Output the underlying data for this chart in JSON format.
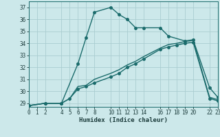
{
  "xlabel": "Humidex (Indice chaleur)",
  "ylabel": "",
  "bg_color": "#cce8ea",
  "grid_color": "#aacdd0",
  "line_color": "#1a6b6b",
  "tick_color": "#1a3a3a",
  "xlim": [
    0,
    23
  ],
  "ylim": [
    28.7,
    37.5
  ],
  "xticks": [
    0,
    1,
    2,
    4,
    5,
    6,
    7,
    8,
    10,
    11,
    12,
    13,
    14,
    16,
    17,
    18,
    19,
    20,
    22,
    23
  ],
  "yticks": [
    29,
    30,
    31,
    32,
    33,
    34,
    35,
    36,
    37
  ],
  "series1_x": [
    0,
    2,
    4,
    6,
    7,
    8,
    10,
    11,
    12,
    13,
    14,
    16,
    17,
    19,
    20,
    22,
    23
  ],
  "series1_y": [
    28.8,
    29.0,
    29.0,
    32.3,
    34.5,
    36.6,
    37.0,
    36.4,
    36.0,
    35.3,
    35.3,
    35.3,
    34.6,
    34.2,
    34.3,
    30.3,
    29.5
  ],
  "series2_x": [
    0,
    2,
    4,
    5,
    6,
    7,
    8,
    10,
    11,
    12,
    13,
    14,
    16,
    17,
    18,
    19,
    20,
    22,
    23
  ],
  "series2_y": [
    28.8,
    29.0,
    29.0,
    29.4,
    30.2,
    30.4,
    30.7,
    31.2,
    31.5,
    32.0,
    32.3,
    32.7,
    33.5,
    33.7,
    33.85,
    34.0,
    34.1,
    29.4,
    29.2
  ],
  "series3_x": [
    0,
    2,
    4,
    5,
    6,
    7,
    8,
    10,
    11,
    12,
    13,
    14,
    16,
    17,
    18,
    19,
    20,
    22,
    23
  ],
  "series3_y": [
    28.8,
    29.0,
    29.0,
    29.4,
    30.4,
    30.5,
    31.0,
    31.5,
    31.8,
    32.2,
    32.5,
    32.9,
    33.6,
    33.9,
    34.0,
    34.15,
    34.25,
    29.5,
    29.3
  ]
}
